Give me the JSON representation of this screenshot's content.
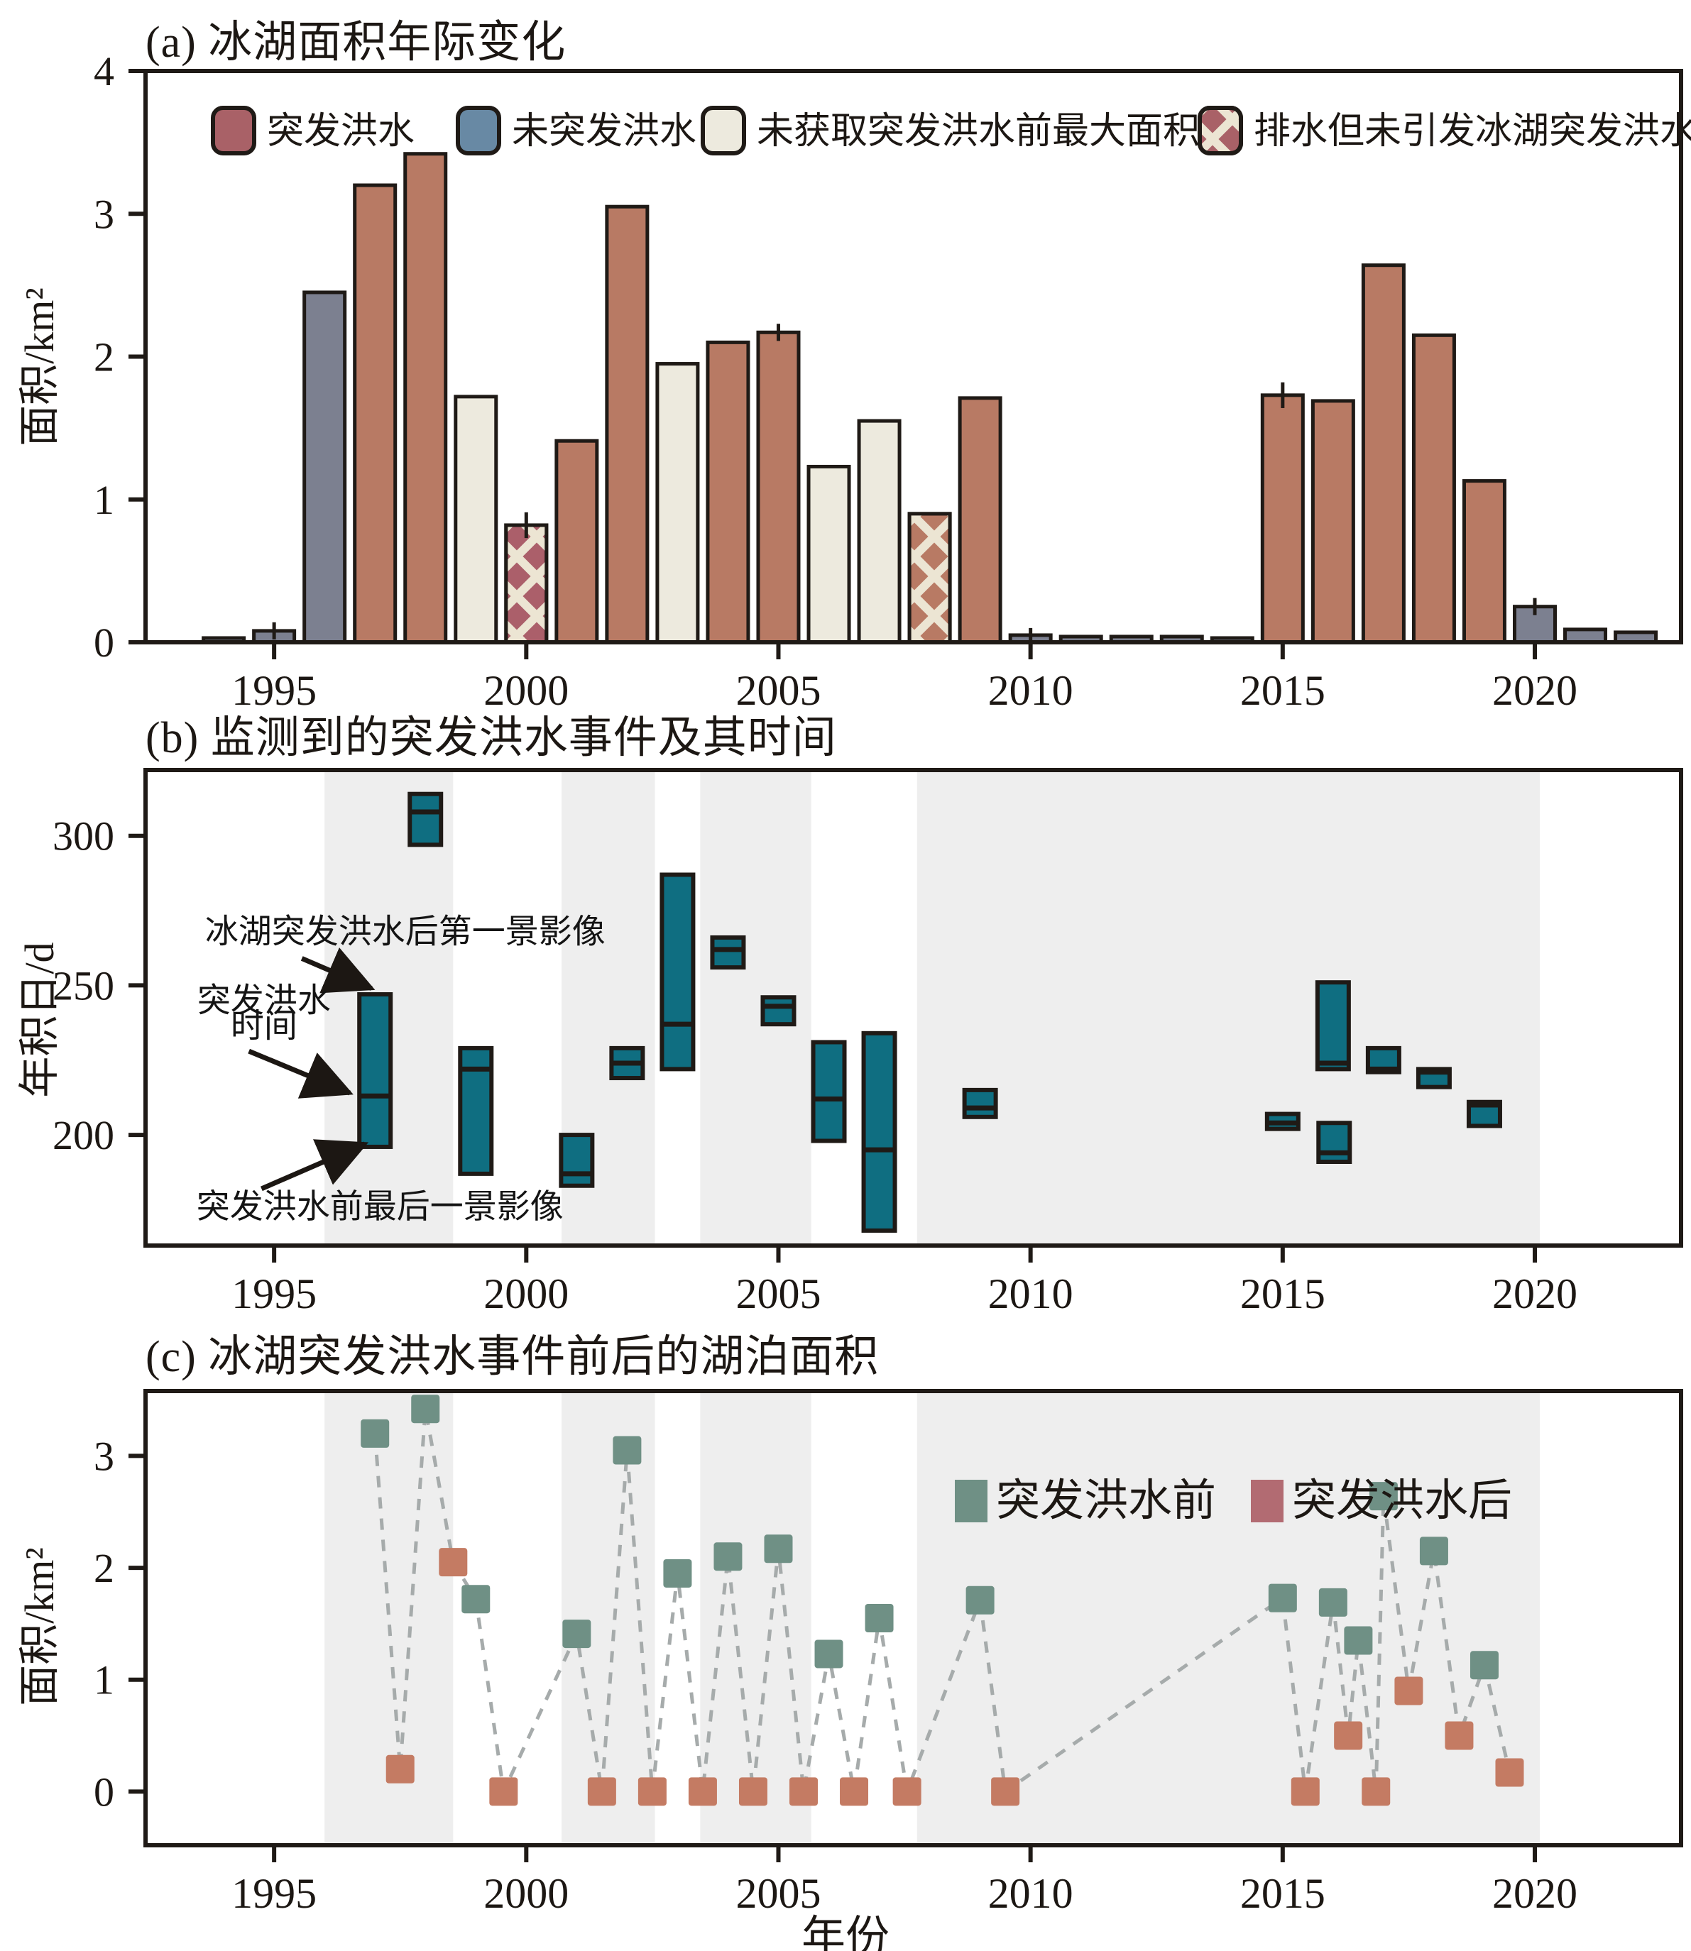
{
  "page": {
    "background": "#ffffff",
    "axis_color": "#1f1a16",
    "band_color": "#eeeeee"
  },
  "chart_data": [
    {
      "panel": "a",
      "type": "bar",
      "title": "(a) 冰湖面积年际变化",
      "ylabel": "面积/km²",
      "xlabel": "",
      "ylim": [
        0,
        4
      ],
      "yticks": [
        "0",
        "1",
        "2",
        "3",
        "4"
      ],
      "ytick_values": [
        0,
        1,
        2,
        3,
        4
      ],
      "xticks": [
        "1995",
        "2000",
        "2005",
        "2010",
        "2015",
        "2020"
      ],
      "xtick_values": [
        1995,
        2000,
        2005,
        2010,
        2015,
        2020
      ],
      "xlim": [
        1992.45,
        2022.9
      ],
      "grid": false,
      "legend_position": "top-inside",
      "legend": [
        {
          "label": "突发洪水",
          "color": "#a96167",
          "hatch": false
        },
        {
          "label": "未突发洪水",
          "color": "#6889a4",
          "hatch": false
        },
        {
          "label": "未获取突发洪水前最大面积",
          "color": "#edeade",
          "hatch": false
        },
        {
          "label": "排水但未引发冰湖突发洪水",
          "color": "#a96167",
          "hatch": true
        }
      ],
      "bar_colors": {
        "flood": "#b87a64",
        "no_flood": "#7c8090",
        "no_pre_max": "#edeade",
        "drained_dark": "#ab5f6a",
        "drained_light": "#b87a64",
        "hatch_stripe": "#ece5d3"
      },
      "bars": [
        {
          "year": 1994,
          "value": 0.03,
          "type": "no_flood"
        },
        {
          "year": 1995,
          "value": 0.08,
          "type": "no_flood",
          "err": 0.06
        },
        {
          "year": 1996,
          "value": 2.45,
          "type": "no_flood"
        },
        {
          "year": 1997,
          "value": 3.2,
          "type": "flood"
        },
        {
          "year": 1998,
          "value": 3.42,
          "type": "flood"
        },
        {
          "year": 1999,
          "value": 1.72,
          "type": "no_pre_max"
        },
        {
          "year": 2000,
          "value": 0.82,
          "type": "drained_dark",
          "err": 0.09
        },
        {
          "year": 2001,
          "value": 1.41,
          "type": "flood"
        },
        {
          "year": 2002,
          "value": 3.05,
          "type": "flood"
        },
        {
          "year": 2003,
          "value": 1.95,
          "type": "no_pre_max"
        },
        {
          "year": 2004,
          "value": 2.1,
          "type": "flood"
        },
        {
          "year": 2005,
          "value": 2.17,
          "type": "flood",
          "err": 0.06
        },
        {
          "year": 2006,
          "value": 1.23,
          "type": "no_pre_max"
        },
        {
          "year": 2007,
          "value": 1.55,
          "type": "no_pre_max"
        },
        {
          "year": 2008,
          "value": 0.9,
          "type": "drained_light"
        },
        {
          "year": 2009,
          "value": 1.71,
          "type": "flood"
        },
        {
          "year": 2010,
          "value": 0.05,
          "type": "no_flood",
          "err": 0.05
        },
        {
          "year": 2011,
          "value": 0.04,
          "type": "no_flood"
        },
        {
          "year": 2012,
          "value": 0.04,
          "type": "no_flood"
        },
        {
          "year": 2013,
          "value": 0.04,
          "type": "no_flood"
        },
        {
          "year": 2014,
          "value": 0.03,
          "type": "no_flood"
        },
        {
          "year": 2015,
          "value": 1.73,
          "type": "flood",
          "err": 0.09
        },
        {
          "year": 2016,
          "value": 1.69,
          "type": "flood"
        },
        {
          "year": 2017,
          "value": 2.64,
          "type": "flood"
        },
        {
          "year": 2018,
          "value": 2.15,
          "type": "flood"
        },
        {
          "year": 2019,
          "value": 1.13,
          "type": "flood"
        },
        {
          "year": 2020,
          "value": 0.25,
          "type": "no_flood",
          "err": 0.06
        },
        {
          "year": 2021,
          "value": 0.09,
          "type": "no_flood"
        },
        {
          "year": 2022,
          "value": 0.07,
          "type": "no_flood"
        }
      ]
    },
    {
      "panel": "b",
      "type": "range-boxes",
      "title": "(b) 监测到的突发洪水事件及其时间",
      "ylabel": "年积日/d",
      "xlabel": "",
      "ylim": [
        163,
        322
      ],
      "yticks": [
        "200",
        "250",
        "300"
      ],
      "ytick_values": [
        200,
        250,
        300
      ],
      "xticks": [
        "1995",
        "2000",
        "2005",
        "2010",
        "2015",
        "2020"
      ],
      "xtick_values": [
        1995,
        2000,
        2005,
        2010,
        2015,
        2020
      ],
      "xlim": [
        1992.45,
        2022.9
      ],
      "box_color": "#0f6e81",
      "bands": [
        [
          1996,
          1998.55
        ],
        [
          2000.7,
          2002.55
        ],
        [
          2003.45,
          2005.65
        ],
        [
          2007.75,
          2020.1
        ]
      ],
      "events": [
        {
          "year": 1997,
          "start": 196,
          "flood": 213,
          "end": 247
        },
        {
          "year": 1998,
          "start": 297,
          "flood": 308,
          "end": 314
        },
        {
          "year": 1999,
          "start": 187,
          "flood": 222,
          "end": 229
        },
        {
          "year": 2001,
          "start": 183,
          "flood": 187,
          "end": 200
        },
        {
          "year": 2002,
          "start": 219,
          "flood": 224,
          "end": 229
        },
        {
          "year": 2003,
          "start": 222,
          "flood": 237,
          "end": 287
        },
        {
          "year": 2004,
          "start": 256,
          "flood": 262,
          "end": 266
        },
        {
          "year": 2005,
          "start": 237,
          "flood": 243,
          "end": 246
        },
        {
          "year": 2006,
          "start": 198,
          "flood": 212,
          "end": 231
        },
        {
          "year": 2007,
          "start": 168,
          "flood": 195,
          "end": 234
        },
        {
          "year": 2009,
          "start": 206,
          "flood": 209,
          "end": 215
        },
        {
          "year": 2015,
          "start": 202,
          "flood": 204,
          "end": 207
        },
        {
          "year": 2016,
          "start": 222,
          "flood": 224,
          "end": 251
        },
        {
          "year": 2016.02,
          "start": 191,
          "flood": 194,
          "end": 204
        },
        {
          "year": 2017,
          "start": 221,
          "flood": 222,
          "end": 229
        },
        {
          "year": 2018,
          "start": 216,
          "flood": 221,
          "end": 222
        },
        {
          "year": 2019,
          "start": 203,
          "flood": 210,
          "end": 211
        }
      ],
      "annotations": [
        {
          "id": "post-image-note",
          "text": "冰湖突发洪水后第一景影像",
          "x": 1997.6,
          "y": 268,
          "arrow": {
            "x1": 1995.55,
            "y1": 259,
            "x2": 1996.93,
            "y2": 249
          }
        },
        {
          "id": "flood-time-note-line1",
          "text": "突发洪水",
          "x": 1994.8,
          "y": 245,
          "arrow": {
            "x1": 1994.5,
            "y1": 228,
            "x2": 1996.5,
            "y2": 214
          }
        },
        {
          "id": "flood-time-note-line2",
          "text": "时间",
          "x": 1994.8,
          "y": 236.5
        },
        {
          "id": "pre-image-note",
          "text": "突发洪水前最后一景影像",
          "x": 1997.1,
          "y": 176,
          "arrow": {
            "x1": 1994.75,
            "y1": 182,
            "x2": 1996.8,
            "y2": 197
          }
        }
      ]
    },
    {
      "panel": "c",
      "type": "scatter",
      "title": "(c) 冰湖突发洪水事件前后的湖泊面积",
      "ylabel": "面积/km²",
      "xlabel": "年份",
      "ylim": [
        -0.48,
        3.58
      ],
      "yticks": [
        "0",
        "1",
        "2",
        "3"
      ],
      "ytick_values": [
        0,
        1,
        2,
        3
      ],
      "xticks": [
        "1995",
        "2000",
        "2005",
        "2010",
        "2015",
        "2020"
      ],
      "xtick_values": [
        1995,
        2000,
        2005,
        2010,
        2015,
        2020
      ],
      "xlim": [
        1992.45,
        2022.9
      ],
      "bands": [
        [
          1996,
          1998.55
        ],
        [
          2000.7,
          2002.55
        ],
        [
          2003.45,
          2005.65
        ],
        [
          2007.75,
          2020.1
        ]
      ],
      "connector_color": "#a6abab",
      "legend_position": "top-right-inside",
      "legend": [
        {
          "label": "突发洪水前",
          "color": "#6f9085"
        },
        {
          "label": "突发洪水后",
          "color": "#b26b72"
        }
      ],
      "series": [
        {
          "name": "突发洪水前",
          "color": "#6f9085",
          "points": [
            [
              1997,
              3.2
            ],
            [
              1998,
              3.42
            ],
            [
              1999,
              1.72
            ],
            [
              2001,
              1.41
            ],
            [
              2002,
              3.05
            ],
            [
              2003,
              1.95
            ],
            [
              2004,
              2.1
            ],
            [
              2005,
              2.17
            ],
            [
              2006,
              1.23
            ],
            [
              2007,
              1.55
            ],
            [
              2009,
              1.71
            ],
            [
              2015,
              1.73
            ],
            [
              2016,
              1.69
            ],
            [
              2016.5,
              1.35
            ],
            [
              2017,
              2.64
            ],
            [
              2018,
              2.15
            ],
            [
              2019,
              1.13
            ]
          ]
        },
        {
          "name": "突发洪水后",
          "color": "#c47b63",
          "points": [
            [
              1997.5,
              0.2
            ],
            [
              1998.55,
              2.05
            ],
            [
              1999.55,
              0.0
            ],
            [
              2001.5,
              0.0
            ],
            [
              2002.5,
              0.0
            ],
            [
              2003.5,
              0.0
            ],
            [
              2004.5,
              0.0
            ],
            [
              2005.5,
              0.0
            ],
            [
              2006.5,
              0.0
            ],
            [
              2007.55,
              0.0
            ],
            [
              2009.5,
              0.0
            ],
            [
              2015.45,
              0.0
            ],
            [
              2016.3,
              0.5
            ],
            [
              2016.85,
              0.0
            ],
            [
              2017.5,
              0.9
            ],
            [
              2018.5,
              0.5
            ],
            [
              2019.5,
              0.17
            ]
          ]
        }
      ]
    }
  ]
}
